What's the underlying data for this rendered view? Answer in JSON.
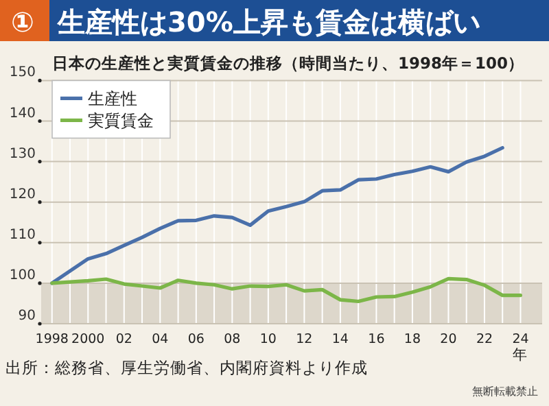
{
  "chart_data": {
    "type": "line",
    "title": "①生産性は30%上昇も賃金は横ばい",
    "subtitle": "日本の生産性と実質賃金の推移（時間当たり、1998年＝100）",
    "xlabel": "年",
    "x": [
      1998,
      1999,
      2000,
      2001,
      2002,
      2003,
      2004,
      2005,
      2006,
      2007,
      2008,
      2009,
      2010,
      2011,
      2012,
      2013,
      2014,
      2015,
      2016,
      2017,
      2018,
      2019,
      2020,
      2021,
      2022,
      2023,
      2024
    ],
    "series": [
      {
        "name": "生産性",
        "color": "#4a70aa",
        "values": [
          100,
          103,
          106,
          107.3,
          109.3,
          111.3,
          113.5,
          115.4,
          115.5,
          116.6,
          116.2,
          114.3,
          117.8,
          118.9,
          120.1,
          122.8,
          123,
          125.5,
          125.7,
          126.8,
          127.6,
          128.7,
          127.5,
          129.9,
          131.3,
          133.4,
          null
        ]
      },
      {
        "name": "実質賃金",
        "color": "#7cb648",
        "values": [
          100,
          100.3,
          100.6,
          101,
          99.8,
          99.3,
          98.8,
          100.7,
          100,
          99.6,
          98.6,
          99.3,
          99.2,
          99.6,
          98.1,
          98.4,
          95.9,
          95.5,
          96.6,
          96.7,
          97.8,
          99.1,
          101.1,
          100.9,
          99.5,
          97,
          97
        ]
      }
    ],
    "xlim": [
      1997.4,
      2025.2
    ],
    "ylim": [
      90,
      150
    ],
    "yticks": [
      90,
      100,
      110,
      120,
      130,
      140,
      150
    ],
    "xticks": [
      1998,
      {
        "value": 1999,
        "label": null
      },
      2000,
      {
        "value": 2001,
        "label": null
      },
      {
        "value": 2002,
        "label": "02"
      },
      {
        "value": 2003,
        "label": null
      },
      {
        "value": 2004,
        "label": "04"
      },
      {
        "value": 2005,
        "label": null
      },
      {
        "value": 2006,
        "label": "06"
      },
      {
        "value": 2007,
        "label": null
      },
      {
        "value": 2008,
        "label": "08"
      },
      {
        "value": 2009,
        "label": null
      },
      {
        "value": 2010,
        "label": "10"
      },
      {
        "value": 2011,
        "label": null
      },
      {
        "value": 2012,
        "label": "12"
      },
      {
        "value": 2013,
        "label": null
      },
      {
        "value": 2014,
        "label": "14"
      },
      {
        "value": 2015,
        "label": null
      },
      {
        "value": 2016,
        "label": "16"
      },
      {
        "value": 2017,
        "label": null
      },
      {
        "value": 2018,
        "label": "18"
      },
      {
        "value": 2019,
        "label": null
      },
      {
        "value": 2020,
        "label": "20"
      },
      {
        "value": 2021,
        "label": null
      },
      {
        "value": 2022,
        "label": "22"
      },
      {
        "value": 2023,
        "label": null
      },
      {
        "value": 2024,
        "label": "24"
      }
    ],
    "grid": true,
    "legend": "top left",
    "bands": [
      {
        "axis": "y",
        "from": 90,
        "to": 100,
        "color": "#ddd7cb"
      }
    ],
    "annotations": [
      "出所：総務省、厚生労働省、内閣府資料より作成",
      "無断転載禁止"
    ]
  }
}
